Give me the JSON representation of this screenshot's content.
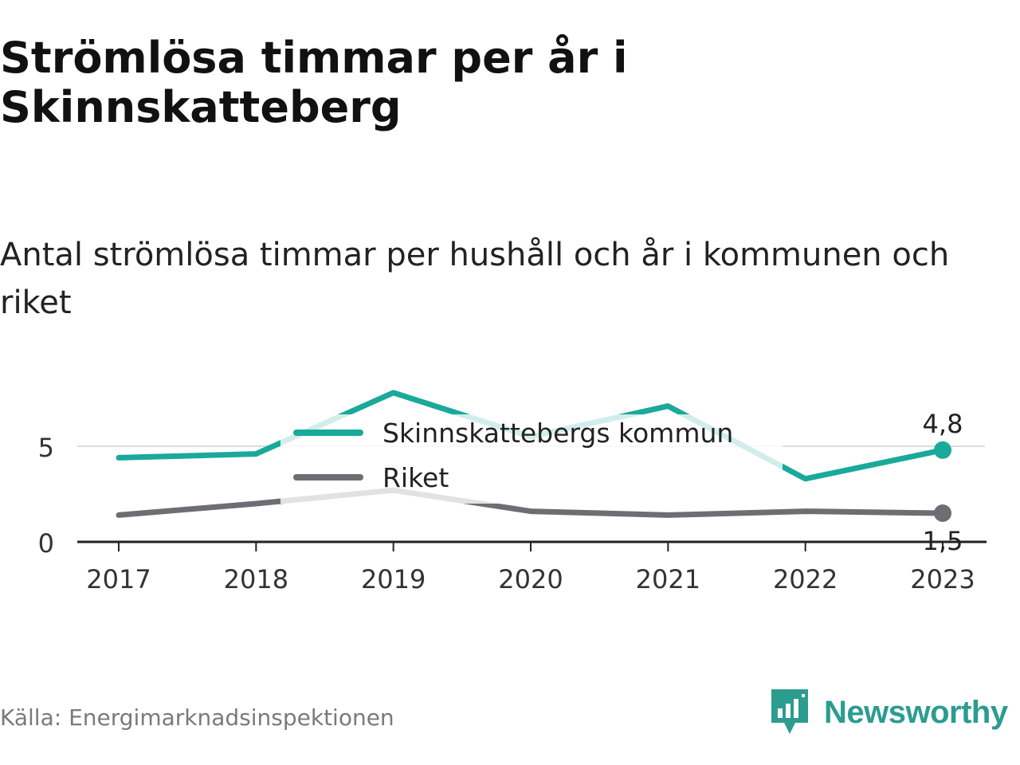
{
  "title": "Strömlösa timmar per år i Skinnskatteberg",
  "subtitle": "Antal strömlösa timmar per hushåll och år i kommunen och riket",
  "source": "Källa: Energimarknadsinspektionen",
  "brand": "Newsworthy",
  "colors": {
    "kommun": "#1aa99a",
    "riket": "#6e6d74",
    "grid": "#dcdcdc",
    "axis": "#222222",
    "brand": "#2c9c8f"
  },
  "chart_data": {
    "type": "line",
    "x": [
      "2017",
      "2018",
      "2019",
      "2020",
      "2021",
      "2022",
      "2023"
    ],
    "series": [
      {
        "name": "Skinnskattebergs kommun",
        "values": [
          4.4,
          4.6,
          7.8,
          5.5,
          7.1,
          3.3,
          4.8
        ]
      },
      {
        "name": "Riket",
        "values": [
          1.4,
          2.0,
          2.7,
          1.6,
          1.4,
          1.6,
          1.5
        ]
      }
    ],
    "end_labels": [
      "4,8",
      "1,5"
    ],
    "y_ticks": [
      {
        "value": 0,
        "label": "0"
      },
      {
        "value": 5,
        "label": "5"
      }
    ],
    "ylim": [
      0,
      8
    ],
    "legend": "top-center",
    "grid": true
  }
}
